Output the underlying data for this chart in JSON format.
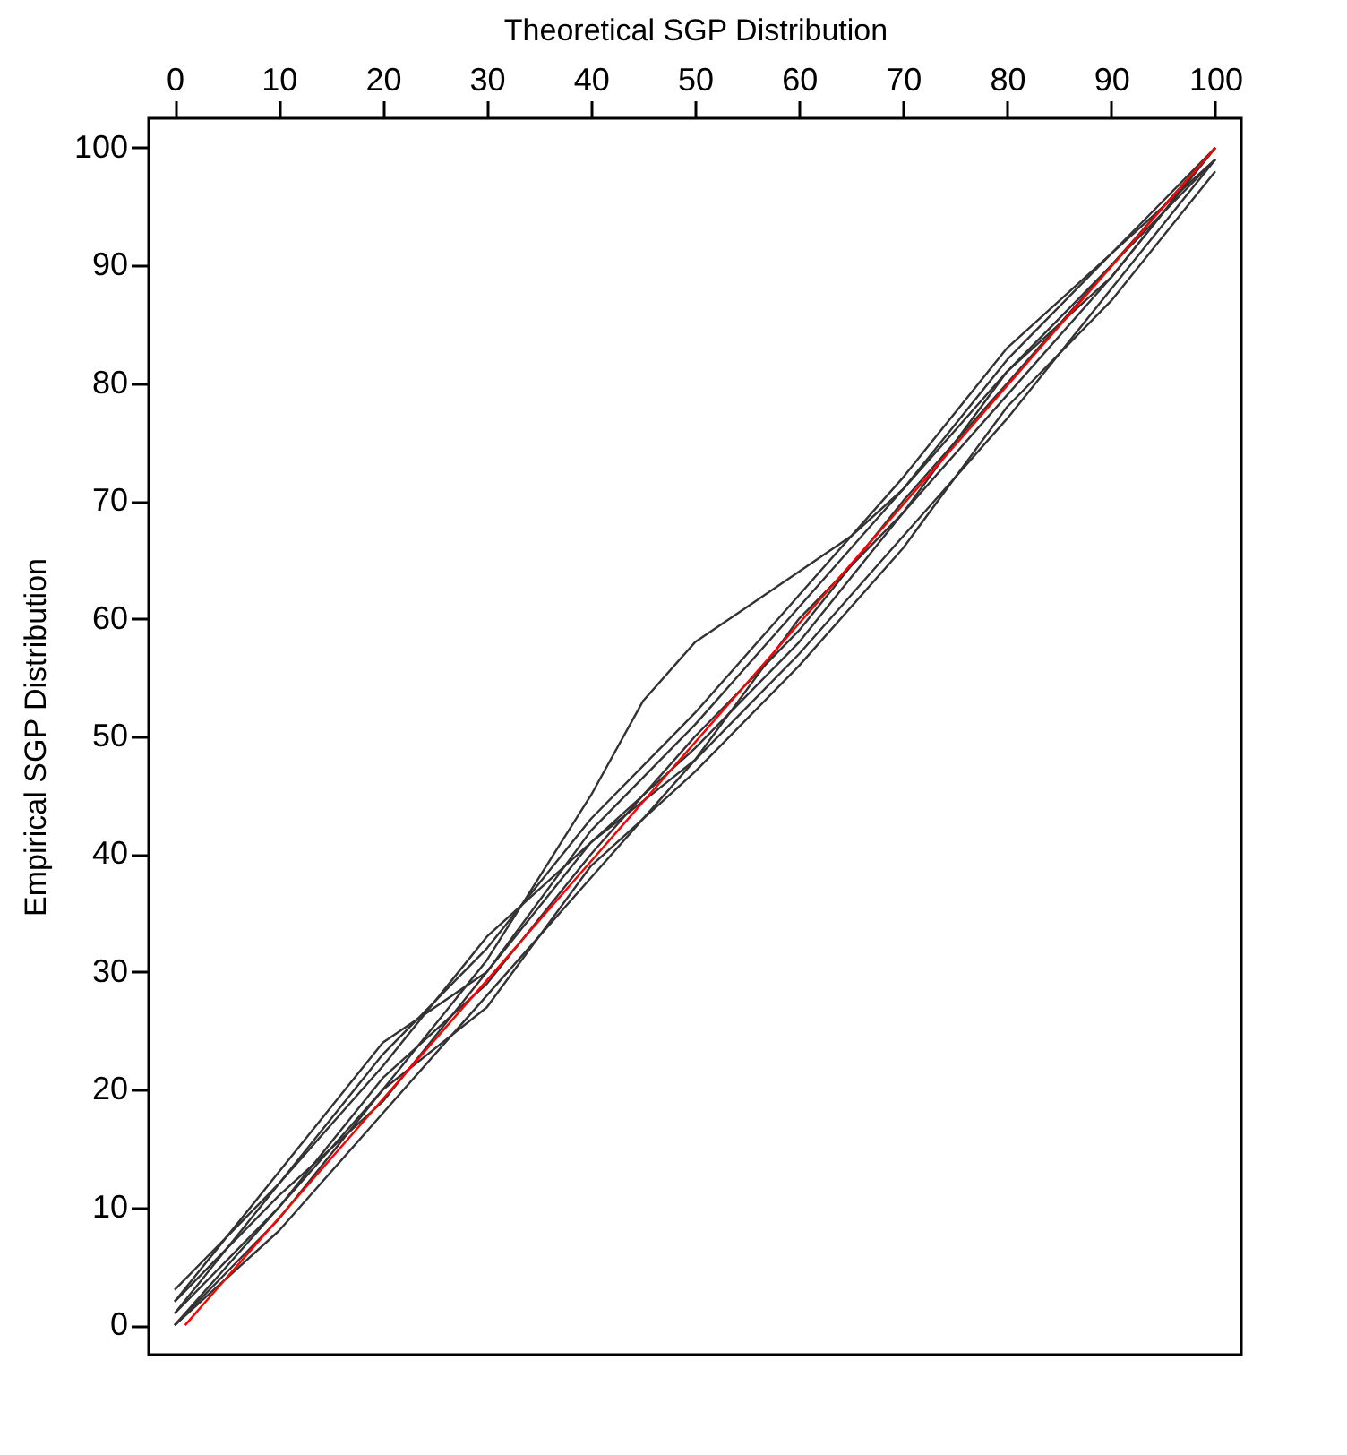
{
  "chart_data": {
    "type": "line",
    "xlabel": "Theoretical SGP Distribution",
    "ylabel": "Empirical SGP Distribution",
    "x": [
      0,
      10,
      20,
      30,
      40,
      50,
      60,
      70,
      80,
      90,
      100
    ],
    "series": [
      {
        "color": "#333333",
        "x": [
          0,
          10,
          20,
          30,
          40,
          45,
          50,
          55,
          60,
          65,
          70,
          80,
          90,
          100
        ],
        "values": [
          0,
          10,
          20,
          31,
          45,
          53,
          58,
          61,
          64,
          67,
          71,
          81,
          90,
          100
        ]
      },
      {
        "color": "#333333",
        "values": [
          1,
          12,
          23,
          32,
          43,
          52,
          62,
          72,
          83,
          91,
          100
        ]
      },
      {
        "color": "#333333",
        "values": [
          2,
          13,
          24,
          30,
          41,
          49,
          58,
          69,
          79,
          89,
          100
        ]
      },
      {
        "color": "#333333",
        "values": [
          0,
          8,
          18,
          28,
          38,
          48,
          57,
          67,
          77,
          88,
          99
        ]
      },
      {
        "color": "#333333",
        "values": [
          1,
          10,
          21,
          29,
          40,
          50,
          59,
          70,
          80,
          90,
          99
        ]
      },
      {
        "color": "#333333",
        "values": [
          2,
          11,
          19,
          30,
          42,
          51,
          61,
          71,
          82,
          91,
          99
        ]
      },
      {
        "color": "#333333",
        "values": [
          0,
          9,
          20,
          27,
          39,
          47,
          56,
          66,
          78,
          87,
          98
        ]
      },
      {
        "color": "#333333",
        "values": [
          3,
          12,
          22,
          33,
          41,
          48,
          60,
          69,
          81,
          89,
          100
        ]
      },
      {
        "color": "#ff0000",
        "x": [
          1,
          100
        ],
        "values": [
          0,
          100
        ]
      }
    ],
    "xlim": [
      -2.5,
      102.5
    ],
    "ylim": [
      -2.5,
      102.5
    ],
    "xticks": [
      0,
      10,
      20,
      30,
      40,
      50,
      60,
      70,
      80,
      90,
      100
    ],
    "yticks": [
      0,
      10,
      20,
      30,
      40,
      50,
      60,
      70,
      80,
      90,
      100
    ]
  }
}
